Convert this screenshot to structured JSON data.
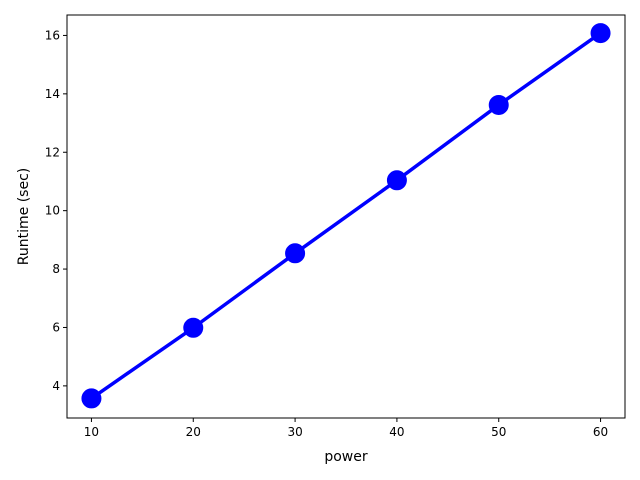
{
  "chart_data": {
    "type": "line",
    "title": "",
    "xlabel": "power",
    "ylabel": "Runtime (sec)",
    "x": [
      10,
      20,
      30,
      40,
      50,
      60
    ],
    "series": [
      {
        "values": [
          3.57,
          5.99,
          8.54,
          11.04,
          13.62,
          16.08
        ],
        "color": "#0000ff"
      }
    ],
    "xlim": [
      7.6,
      62.4
    ],
    "ylim": [
      2.9,
      16.7
    ],
    "xticks": [
      10,
      20,
      30,
      40,
      50,
      60
    ],
    "yticks": [
      4,
      6,
      8,
      10,
      12,
      14,
      16
    ],
    "xtick_labels": [
      "10",
      "20",
      "30",
      "40",
      "50",
      "60"
    ],
    "ytick_labels": [
      "4",
      "6",
      "8",
      "10",
      "12",
      "14",
      "16"
    ],
    "grid": false,
    "legend": "none",
    "marker": "circle"
  }
}
